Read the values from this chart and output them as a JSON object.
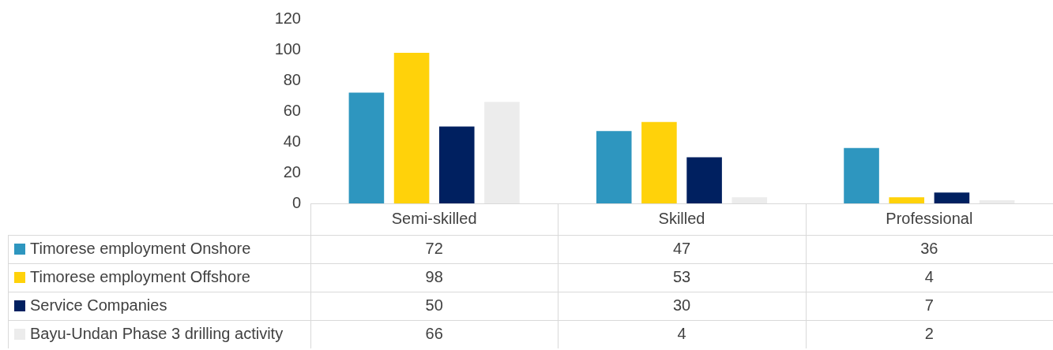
{
  "chart_data": {
    "type": "bar",
    "categories": [
      "Semi-skilled",
      "Skilled",
      "Professional"
    ],
    "series": [
      {
        "name": "Timorese employment Onshore",
        "color": "#2e96bf",
        "values": [
          72,
          47,
          36
        ]
      },
      {
        "name": "Timorese employment Offshore",
        "color": "#ffd20a",
        "values": [
          98,
          53,
          4
        ]
      },
      {
        "name": "Service Companies",
        "color": "#002060",
        "values": [
          50,
          30,
          7
        ]
      },
      {
        "name": "Bayu-Undan Phase 3 drilling activity",
        "color": "#ececec",
        "values": [
          66,
          4,
          2
        ]
      }
    ],
    "ylim": [
      0,
      120
    ],
    "yticks": [
      0,
      20,
      40,
      60,
      80,
      100,
      120
    ],
    "grid": false,
    "legend": "bottom",
    "data_labels": true
  }
}
